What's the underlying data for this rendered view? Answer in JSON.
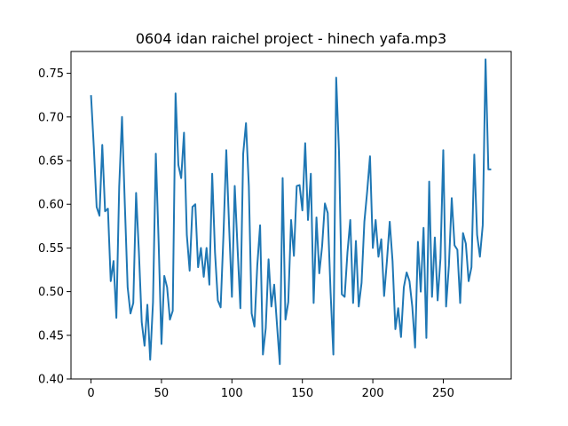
{
  "chart_data": {
    "type": "line",
    "title": "0604 idan raichel project - hinech yafa.mp3",
    "xlabel": "",
    "ylabel": "",
    "xlim": [
      -14.2,
      298.2
    ],
    "ylim": [
      0.4,
      0.775
    ],
    "x_ticks": [
      0,
      50,
      100,
      150,
      200,
      250
    ],
    "y_ticks": [
      0.4,
      0.45,
      0.5,
      0.55,
      0.6,
      0.65,
      0.7,
      0.75
    ],
    "x_tick_labels": [
      "0",
      "50",
      "100",
      "150",
      "200",
      "250"
    ],
    "y_tick_labels": [
      "0.40",
      "0.45",
      "0.50",
      "0.55",
      "0.60",
      "0.65",
      "0.70",
      "0.75"
    ],
    "grid": false,
    "line_color": "#1f77b4",
    "series": [
      {
        "x": [
          0,
          2,
          4,
          6,
          8,
          10,
          12,
          14,
          16,
          18,
          20,
          22,
          24,
          26,
          28,
          30,
          32,
          34,
          36,
          38,
          40,
          42,
          44,
          46,
          48,
          50,
          52,
          54,
          56,
          58,
          60,
          62,
          64,
          66,
          68,
          70,
          72,
          74,
          76,
          78,
          80,
          82,
          84,
          86,
          88,
          90,
          92,
          94,
          96,
          98,
          100,
          102,
          104,
          106,
          108,
          110,
          112,
          114,
          116,
          118,
          120,
          122,
          124,
          126,
          128,
          130,
          132,
          134,
          136,
          138,
          140,
          142,
          144,
          146,
          148,
          150,
          152,
          154,
          156,
          158,
          160,
          162,
          164,
          166,
          168,
          170,
          172,
          174,
          176,
          178,
          180,
          182,
          184,
          186,
          188,
          190,
          192,
          194,
          196,
          198,
          200,
          202,
          204,
          206,
          208,
          210,
          212,
          214,
          216,
          218,
          220,
          222,
          224,
          226,
          228,
          230,
          232,
          234,
          236,
          238,
          240,
          242,
          244,
          246,
          248,
          250,
          252,
          254,
          256,
          258,
          260,
          262,
          264,
          266,
          268,
          270,
          272,
          274,
          276,
          278,
          280,
          282,
          284
        ],
        "values": [
          0.725,
          0.665,
          0.597,
          0.587,
          0.668,
          0.592,
          0.595,
          0.512,
          0.535,
          0.47,
          0.62,
          0.7,
          0.6,
          0.505,
          0.475,
          0.487,
          0.613,
          0.545,
          0.465,
          0.438,
          0.485,
          0.422,
          0.488,
          0.658,
          0.556,
          0.44,
          0.518,
          0.505,
          0.468,
          0.478,
          0.727,
          0.645,
          0.63,
          0.682,
          0.565,
          0.524,
          0.597,
          0.6,
          0.528,
          0.55,
          0.517,
          0.55,
          0.508,
          0.635,
          0.545,
          0.49,
          0.482,
          0.565,
          0.662,
          0.575,
          0.494,
          0.621,
          0.55,
          0.481,
          0.658,
          0.693,
          0.621,
          0.475,
          0.46,
          0.53,
          0.576,
          0.428,
          0.458,
          0.537,
          0.483,
          0.508,
          0.462,
          0.417,
          0.63,
          0.468,
          0.488,
          0.582,
          0.541,
          0.621,
          0.622,
          0.593,
          0.67,
          0.582,
          0.635,
          0.487,
          0.585,
          0.521,
          0.552,
          0.601,
          0.59,
          0.5,
          0.428,
          0.745,
          0.66,
          0.497,
          0.494,
          0.545,
          0.582,
          0.487,
          0.558,
          0.483,
          0.51,
          0.58,
          0.615,
          0.655,
          0.55,
          0.582,
          0.54,
          0.56,
          0.495,
          0.535,
          0.58,
          0.535,
          0.457,
          0.481,
          0.448,
          0.505,
          0.522,
          0.512,
          0.483,
          0.436,
          0.557,
          0.5,
          0.573,
          0.447,
          0.626,
          0.494,
          0.562,
          0.49,
          0.538,
          0.662,
          0.483,
          0.53,
          0.607,
          0.553,
          0.548,
          0.487,
          0.567,
          0.555,
          0.512,
          0.528,
          0.657,
          0.565,
          0.54,
          0.576,
          0.766,
          0.64,
          0.64
        ]
      }
    ]
  }
}
